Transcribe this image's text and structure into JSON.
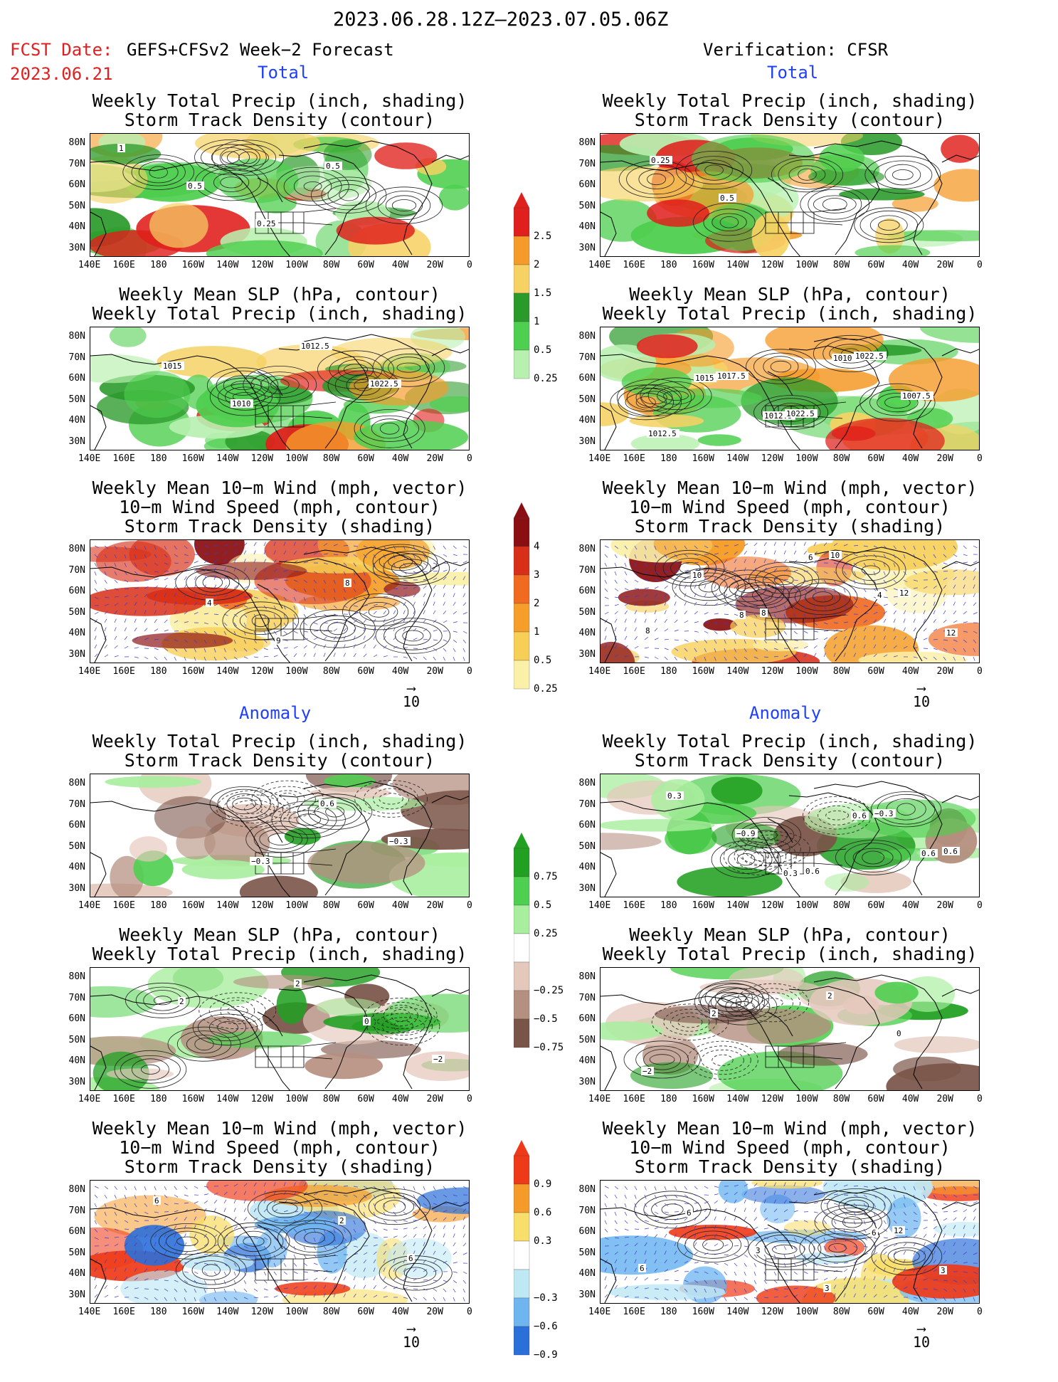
{
  "header": {
    "title": "2023.06.28.12Z–2023.07.05.06Z",
    "fcst_label": "FCST Date:",
    "fcst_model": "GEFS+CFSv2 Week−2 Forecast",
    "fcst_date": "2023.06.21",
    "verification": "Verification: CFSR"
  },
  "sections": {
    "total": "Total",
    "anomaly": "Anomaly"
  },
  "panels": {
    "precip_track": "Weekly Total Precip (inch, shading)\nStorm Track Density (contour)",
    "slp_precip": "Weekly Mean SLP (hPa, contour)\nWeekly Total Precip (inch, shading)",
    "wind": "Weekly Mean 10−m Wind (mph, vector)\n10−m Wind Speed (mph, contour)\nStorm Track Density (shading)"
  },
  "axes": {
    "lat": [
      "80N",
      "70N",
      "60N",
      "50N",
      "40N",
      "30N"
    ],
    "lon": [
      "140E",
      "160E",
      "180",
      "160W",
      "140W",
      "120W",
      "100W",
      "80W",
      "60W",
      "40W",
      "20W",
      "0"
    ]
  },
  "vector_ref": "10",
  "colorbars": {
    "precip_total": {
      "labels": [
        "2.5",
        "2",
        "1.5",
        "1",
        "0.5",
        "0.25"
      ],
      "colors": [
        "#e0201c",
        "#f59b2a",
        "#f6d264",
        "#2a9a2a",
        "#4fcf4f",
        "#b8f0b0"
      ]
    },
    "track_total": {
      "labels": [
        "4",
        "3",
        "2",
        "1",
        "0.5",
        "0.25"
      ],
      "colors": [
        "#8a0f12",
        "#d83018",
        "#f06a20",
        "#f59f2a",
        "#f7cf57",
        "#fbf0a8"
      ]
    },
    "precip_anom": {
      "labels": [
        "0.75",
        "0.5",
        "0.25",
        "−0.25",
        "−0.5",
        "−0.75"
      ],
      "colors": [
        "#22a022",
        "#4fcf4f",
        "#a9ee9f",
        "#ffffff",
        "#e5c8bc",
        "#b58f80",
        "#7a5448"
      ]
    },
    "track_anom": {
      "labels": [
        "0.9",
        "0.6",
        "0.3",
        "−0.3",
        "−0.6",
        "−0.9"
      ],
      "colors": [
        "#ee3a18",
        "#f59b2a",
        "#f8de6a",
        "#ffffff",
        "#bfe8f5",
        "#6fb6f0",
        "#2b6fd8"
      ]
    }
  },
  "contour_labels": {
    "fc_track": [
      "1",
      "0.5",
      "0.25",
      "0.5"
    ],
    "ob_track": [
      "0.25",
      "0.5"
    ],
    "fc_slp": [
      "1015",
      "1010",
      "1012.5",
      "1022.5"
    ],
    "ob_slp": [
      "1015",
      "1012.5",
      "1010",
      "1007.5",
      "1012.5",
      "1017.5",
      "1022.5",
      "1022.5"
    ],
    "fc_wind": [
      "4",
      "9",
      "8"
    ],
    "ob_wind": [
      "8",
      "6",
      "4",
      "12",
      "10",
      "8",
      "10",
      "12",
      "8"
    ],
    "fc_anom_track": [
      "−0.3",
      "0.6",
      "−0.3"
    ],
    "ob_anom_track": [
      "0.3",
      "0.6",
      "0.6",
      "0.3",
      "−0.9",
      "0.6",
      "−0.3",
      "0.6"
    ],
    "fc_anom_slp": [
      "2",
      "0",
      "−2",
      "2"
    ],
    "ob_anom_slp": [
      "2",
      "0",
      "−2",
      "2"
    ],
    "fc_anom_wind": [
      "2",
      "6",
      "6"
    ],
    "ob_anom_wind": [
      "6",
      "3",
      "6",
      "3",
      "3",
      "12",
      "6"
    ]
  }
}
